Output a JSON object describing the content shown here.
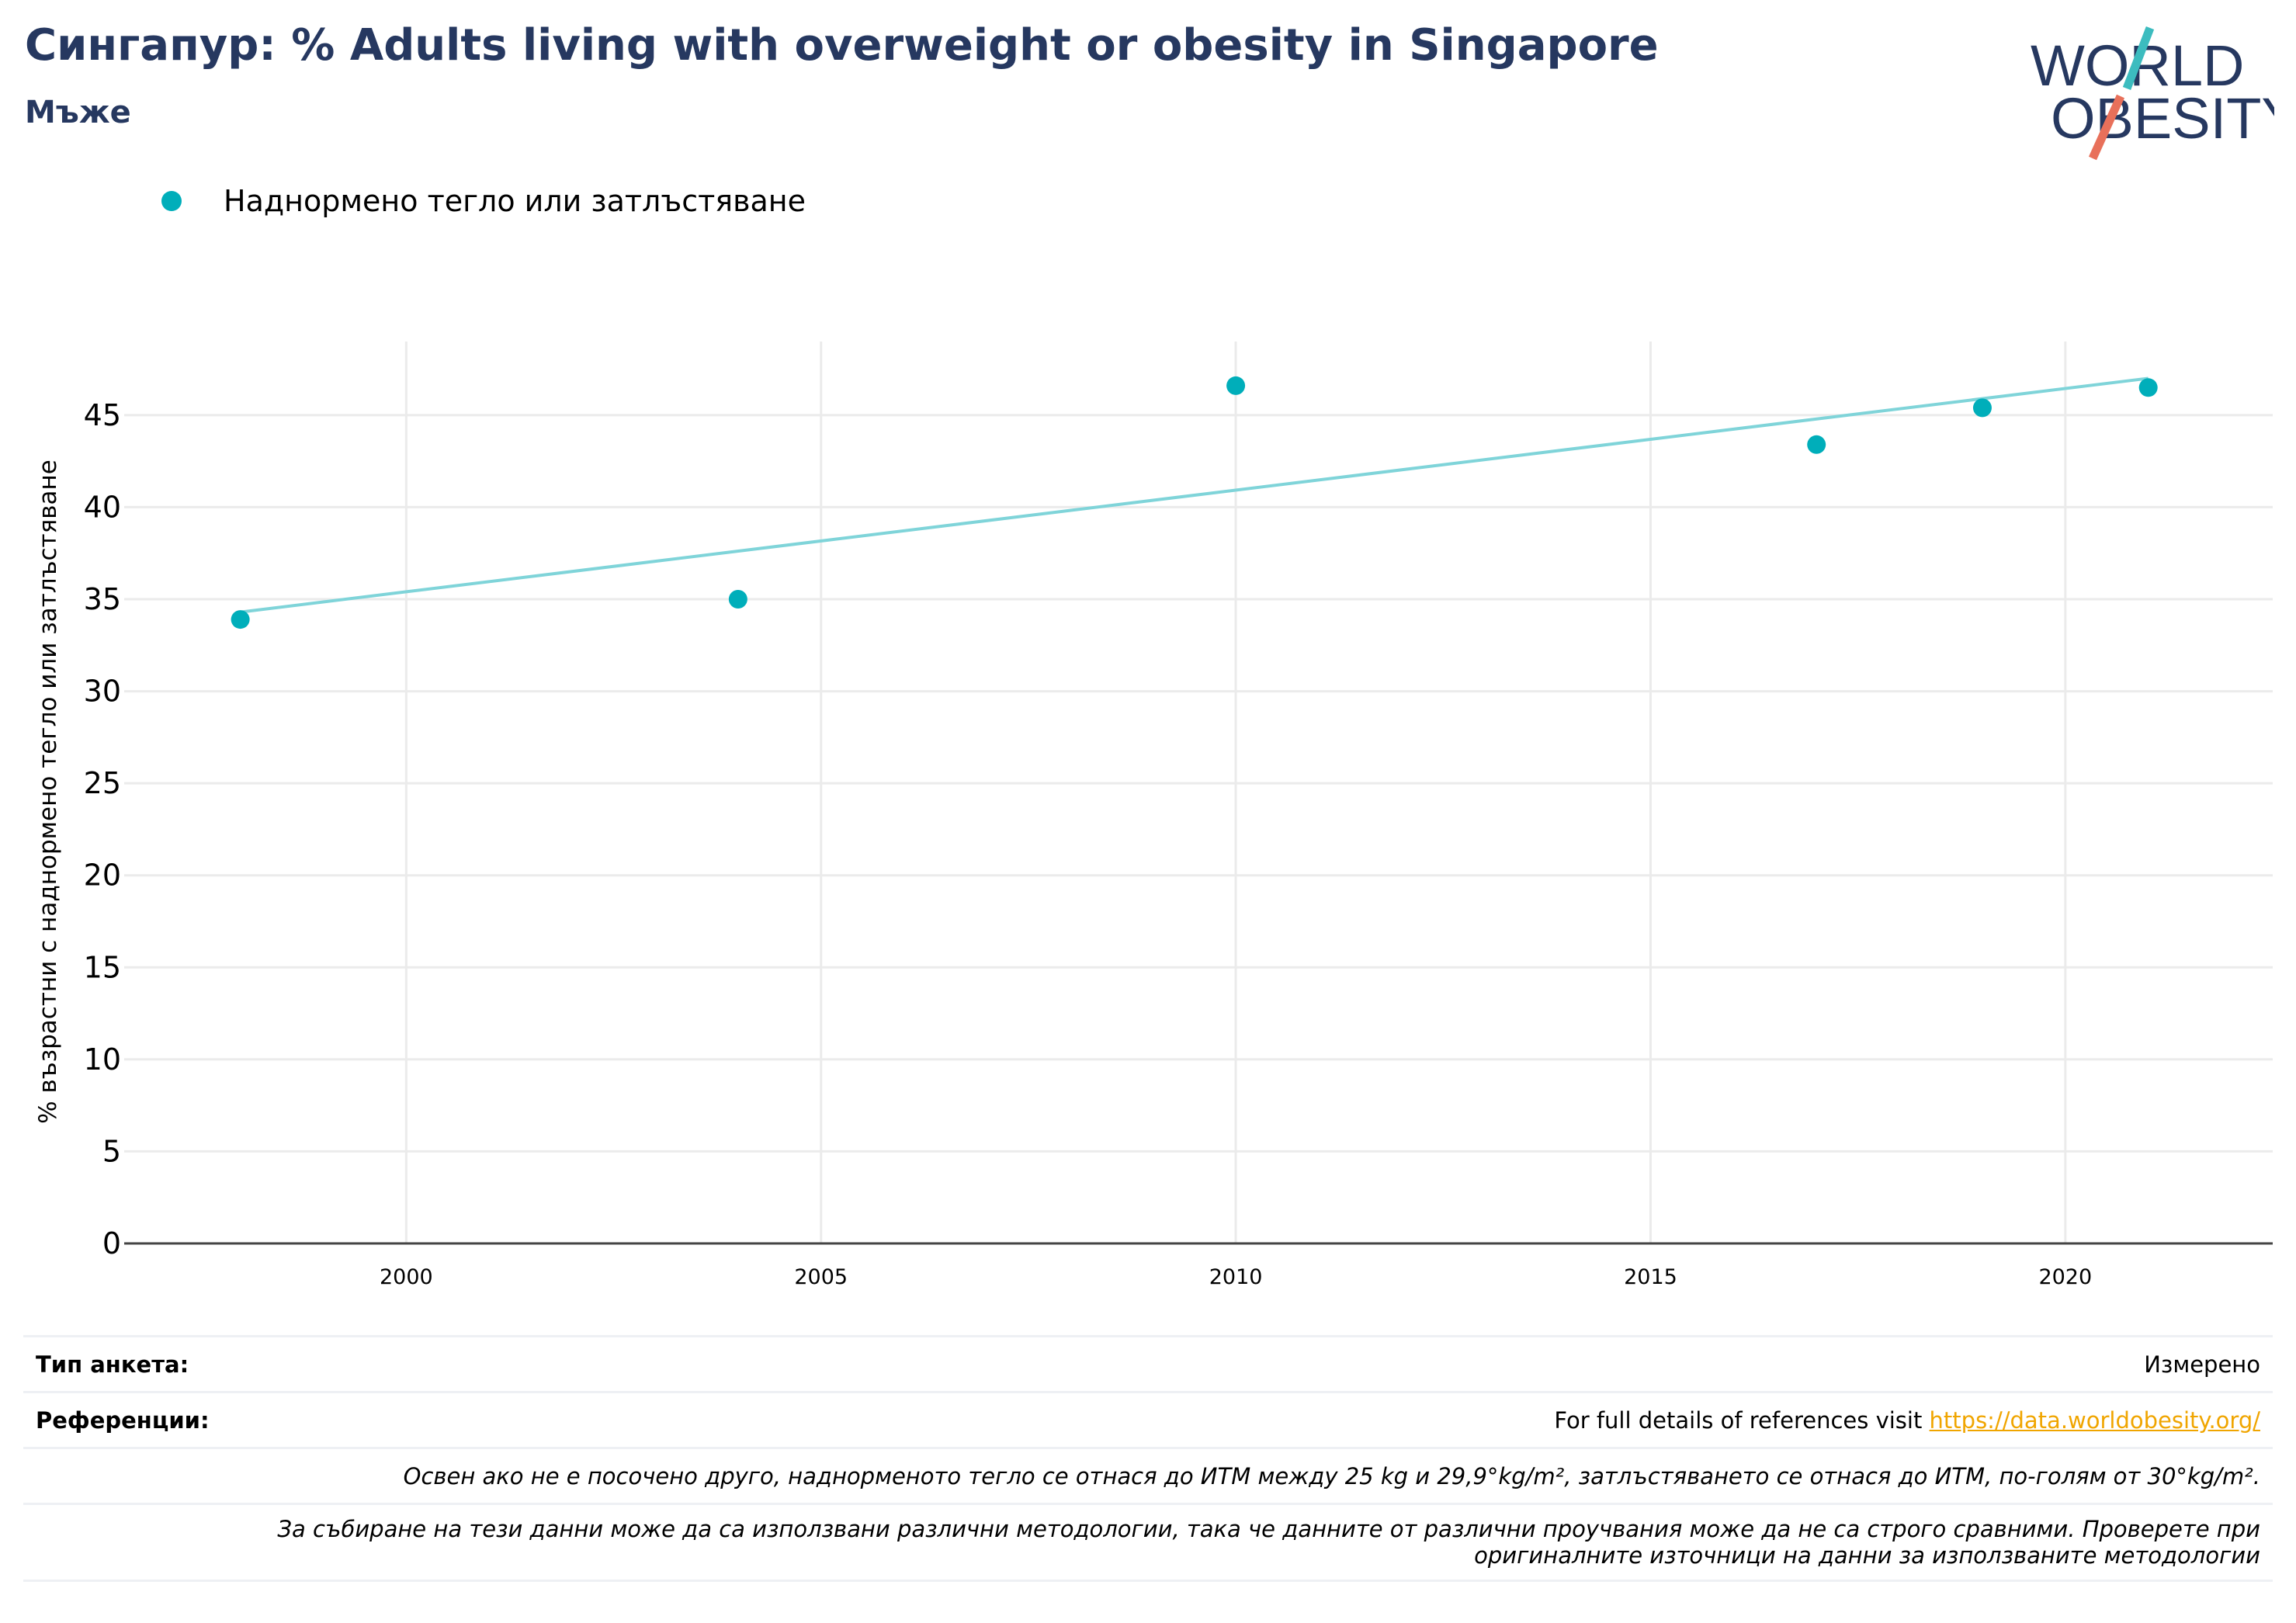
{
  "header": {
    "title": "Сингапур: % Adults living with overweight or obesity in Singapore",
    "subtitle": "Мъже"
  },
  "logo": {
    "line1": "WORLD",
    "line2": "OBESITY"
  },
  "legend": {
    "label": "Наднормено тегло или затлъстяване"
  },
  "colors": {
    "series": "#00aeba",
    "trend": "#7fd4d9",
    "title": "#263860",
    "link": "#f0a500",
    "grid": "#ebebeb"
  },
  "chart_data": {
    "type": "scatter",
    "title": "Сингапур: % Adults living with overweight or obesity in Singapore",
    "subtitle": "Мъже",
    "xlabel": "",
    "ylabel": "% възрастни с наднормено тегло или затлъстяване",
    "xlim": [
      1996.6,
      2022.5
    ],
    "ylim": [
      0,
      49
    ],
    "xticks": [
      2000,
      2005,
      2010,
      2015,
      2020
    ],
    "yticks": [
      0,
      5,
      10,
      15,
      20,
      25,
      30,
      35,
      40,
      45
    ],
    "grid": true,
    "legend_position": "top-left",
    "series": [
      {
        "name": "Наднормено тегло или затлъстяване",
        "x": [
          1998,
          2004,
          2010,
          2017,
          2019,
          2021
        ],
        "y": [
          33.9,
          35.0,
          46.6,
          43.4,
          45.4,
          46.5
        ]
      }
    ],
    "trendline": {
      "x": [
        1998,
        2021
      ],
      "y": [
        34.3,
        47.0
      ]
    }
  },
  "footer": {
    "survey_type_label": "Тип анкета:",
    "survey_type_value": "Измерено",
    "references_label": "Референции:",
    "references_text": "For full details of references visit ",
    "references_link": "https://data.worldobesity.org/",
    "note1": "Освен ако не е посочено друго, наднорменото тегло се отнася до ИТМ между 25 kg и 29,9°kg/m², затлъстяването се отнася до ИТМ, по-голям от 30°kg/m².",
    "note2_line1": "За събиране на тези данни може да са използвани различни методологии, така че данните от различни проучвания може да не са строго сравними. Проверете при",
    "note2_line2": "оригиналните източници на данни за използваните методологии"
  }
}
